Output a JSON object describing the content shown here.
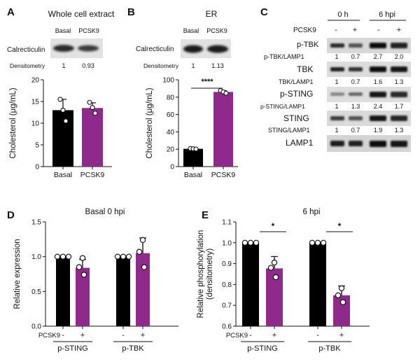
{
  "colors": {
    "basal": "#000000",
    "pcsk9": "#8f2a8a",
    "marker": "#ffffff"
  },
  "panelA": {
    "label": "A",
    "title": "Whole cell extract",
    "lanes": [
      "Basal",
      "PCSK9"
    ],
    "blot_label": "Calrecticulin",
    "densitometry_label": "Densitometry",
    "densitometry_values": [
      "1",
      "0.93"
    ]
  },
  "panelB": {
    "label": "B",
    "title": "ER",
    "lanes": [
      "Basal",
      "PCSK9"
    ],
    "blot_label": "Calrecticulin",
    "densitometry_label": "Densitometry",
    "densitometry_values": [
      "1",
      "1.13"
    ],
    "significance": "****"
  },
  "panelC": {
    "label": "C",
    "timepoints": [
      "0 h",
      "6 hpi"
    ],
    "pcsk9_label": "PCSK9",
    "pcsk9_states": [
      "-",
      "+",
      "-",
      "+"
    ],
    "rows": [
      {
        "blot": "p-TBK",
        "ratio_label": "p-TBK/LAMP1",
        "values": [
          "1",
          "0.7",
          "2.7",
          "2.0"
        ]
      },
      {
        "blot": "TBK",
        "ratio_label": "TBK/LAMP1",
        "values": [
          "1",
          "0.7",
          "1.6",
          "1.3"
        ]
      },
      {
        "blot": "p-STING",
        "ratio_label": "p-STING/LAMP1",
        "values": [
          "1",
          "1.3",
          "2.4",
          "1.7"
        ]
      },
      {
        "blot": "STING",
        "ratio_label": "STING/LAMP1",
        "values": [
          "1",
          "0.7",
          "1.9",
          "1.3"
        ]
      }
    ],
    "loading_control": "LAMP1"
  },
  "panelD": {
    "label": "D"
  },
  "panelE": {
    "label": "E",
    "significance": [
      "*",
      "*"
    ]
  },
  "chart_data": [
    {
      "id": "A",
      "type": "bar",
      "title": "",
      "categories": [
        "Basal",
        "PCSK9"
      ],
      "values": [
        13.0,
        13.5
      ],
      "errors": [
        2.5,
        1.2
      ],
      "points": [
        [
          15.5,
          13.0,
          10.5
        ],
        [
          14.8,
          13.6,
          12.3
        ]
      ],
      "ylabel": "Cholesterol (μg/mL)",
      "ylim": [
        0,
        20
      ],
      "yticks": [
        "0",
        "5",
        "10",
        "15",
        "20"
      ]
    },
    {
      "id": "B",
      "type": "bar",
      "title": "",
      "categories": [
        "Basal",
        "PCSK9"
      ],
      "values": [
        20.5,
        86.0
      ],
      "errors": [
        0.5,
        1.5
      ],
      "points": [
        [
          20.8,
          20.5,
          20.2
        ],
        [
          87.5,
          86.0,
          84.5
        ]
      ],
      "ylabel": "Cholesterol (μg/mL)",
      "ylim": [
        0,
        100
      ],
      "yticks": [
        "0",
        "20",
        "40",
        "60",
        "80",
        "100"
      ]
    },
    {
      "id": "D",
      "type": "bar",
      "title": "Basal 0 hpi",
      "groups": [
        "p-STING",
        "p-TBK"
      ],
      "conditions_label": "PCSK9",
      "conditions": [
        "-",
        "+"
      ],
      "values": [
        [
          1.0,
          0.84
        ],
        [
          1.0,
          1.05
        ]
      ],
      "errors": [
        [
          0,
          0.12
        ],
        [
          0,
          0.22
        ]
      ],
      "points": [
        [
          [
            1.0,
            1.0,
            1.0
          ],
          [
            0.98,
            0.85,
            0.74
          ]
        ],
        [
          [
            1.0,
            1.0,
            1.0
          ],
          [
            1.24,
            1.07,
            0.85
          ]
        ]
      ],
      "ylabel": "Relative expression",
      "ylim": [
        0,
        1.5
      ],
      "yticks": [
        "0.0",
        "0.5",
        "1.0",
        "1.5"
      ]
    },
    {
      "id": "E",
      "type": "bar",
      "title": "6 hpi",
      "groups": [
        "p-STING",
        "p-TBK"
      ],
      "conditions_label": "PCSK9",
      "conditions": [
        "-",
        "+"
      ],
      "values": [
        [
          1.0,
          0.877
        ],
        [
          1.0,
          0.748
        ]
      ],
      "errors": [
        [
          0,
          0.057
        ],
        [
          0,
          0.045
        ]
      ],
      "points": [
        [
          [
            1.0,
            1.0,
            1.0
          ],
          [
            0.905,
            0.88,
            0.835
          ]
        ],
        [
          [
            1.0,
            1.0,
            1.0
          ],
          [
            0.782,
            0.748,
            0.715
          ]
        ]
      ],
      "ylabel": "Relative phosphorylation\n(densitometry)",
      "ylim": [
        0.6,
        1.1
      ],
      "yticks": [
        "0.6",
        "0.7",
        "0.8",
        "0.9",
        "1.0",
        "1.1"
      ]
    }
  ]
}
